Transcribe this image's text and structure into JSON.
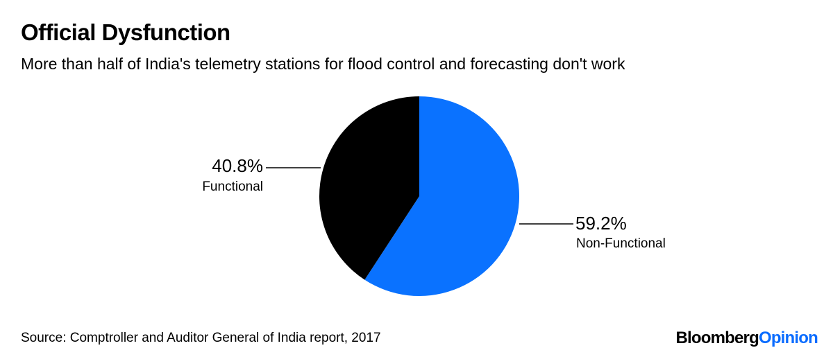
{
  "title": "Official Dysfunction",
  "subtitle": "More than half of India's telemetry stations for flood control and forecasting don't work",
  "source": "Source: Comptroller and Auditor General of India report, 2017",
  "logo": {
    "part1": "Bloomberg",
    "part2": "Opinion",
    "part2_color": "#0a6cff"
  },
  "chart_data": {
    "type": "pie",
    "start": "top, clockwise",
    "slices": [
      {
        "label": "Non-Functional",
        "value": 59.2,
        "value_label": "59.2%",
        "color": "#0a72ff"
      },
      {
        "label": "Functional",
        "value": 40.8,
        "value_label": "40.8%",
        "color": "#000000"
      }
    ]
  }
}
